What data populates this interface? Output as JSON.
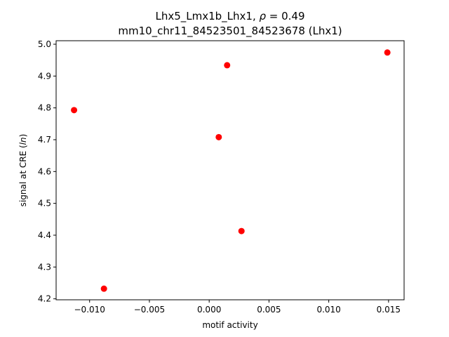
{
  "chart_data": {
    "type": "scatter",
    "title_line1": "Lhx5_Lmx1b_Lhx1, ρ = 0.49",
    "title_line2": "mm10_chr11_84523501_84523678 (Lhx1)",
    "xlabel": "motif activity",
    "ylabel": "signal at CRE (ln)",
    "xlim": [
      -0.0128,
      0.0163
    ],
    "ylim": [
      4.197,
      5.011
    ],
    "xticks": [
      -0.01,
      -0.005,
      0.0,
      0.005,
      0.01,
      0.015
    ],
    "xtick_labels": [
      "−0.010",
      "−0.005",
      "0.000",
      "0.005",
      "0.010",
      "0.015"
    ],
    "yticks": [
      4.2,
      4.3,
      4.4,
      4.5,
      4.6,
      4.7,
      4.8,
      4.9,
      5.0
    ],
    "ytick_labels": [
      "4.2",
      "4.3",
      "4.4",
      "4.5",
      "4.6",
      "4.7",
      "4.8",
      "4.9",
      "5.0"
    ],
    "grid": false,
    "marker_color": "#ff0000",
    "points": [
      {
        "x": -0.0113,
        "y": 4.793
      },
      {
        "x": -0.0088,
        "y": 4.232
      },
      {
        "x": 0.0008,
        "y": 4.708
      },
      {
        "x": 0.0015,
        "y": 4.934
      },
      {
        "x": 0.0027,
        "y": 4.413
      },
      {
        "x": 0.0149,
        "y": 4.974
      }
    ]
  }
}
